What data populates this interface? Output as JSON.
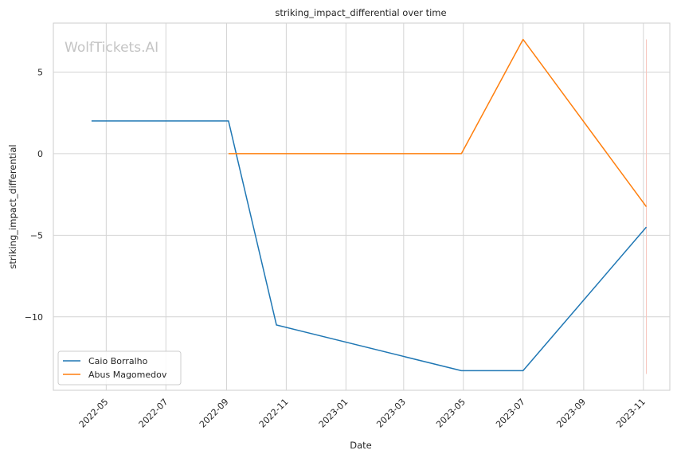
{
  "chart_data": {
    "type": "line",
    "title": "striking_impact_differential over time",
    "xlabel": "Date",
    "ylabel": "striking_impact_differential",
    "watermark": "WolfTickets.AI",
    "x_ticks": [
      "2022-05",
      "2022-07",
      "2022-09",
      "2022-11",
      "2023-01",
      "2023-03",
      "2023-05",
      "2023-07",
      "2023-09",
      "2023-11"
    ],
    "y_ticks": [
      5,
      0,
      -5,
      -10
    ],
    "y_tick_labels": [
      "5",
      "0",
      "−5",
      "−10"
    ],
    "xlim": [
      "2022-03-08",
      "2023-11-28"
    ],
    "ylim": [
      -14.5,
      8.0
    ],
    "grid": true,
    "legend_position": "lower-left",
    "colors": {
      "Caio Borralho": "#1f77b4",
      "Abus Magomedov": "#ff7f0e",
      "marker_line": "#f7c6bd"
    },
    "series": [
      {
        "name": "Caio Borralho",
        "color": "#1f77b4",
        "points": [
          {
            "x": "2022-04-16",
            "y": 2
          },
          {
            "x": "2022-09-03",
            "y": 2
          },
          {
            "x": "2022-10-22",
            "y": -10.5
          },
          {
            "x": "2023-04-29",
            "y": -13.3
          },
          {
            "x": "2023-07-01",
            "y": -13.3
          },
          {
            "x": "2023-11-04",
            "y": -4.5
          }
        ]
      },
      {
        "name": "Abus Magomedov",
        "color": "#ff7f0e",
        "points": [
          {
            "x": "2022-09-03",
            "y": 0
          },
          {
            "x": "2023-04-29",
            "y": 0
          },
          {
            "x": "2023-07-01",
            "y": 7
          },
          {
            "x": "2023-11-04",
            "y": -3.25
          }
        ]
      }
    ],
    "vertical_marker": {
      "x": "2023-11-04",
      "y_range": [
        -13.5,
        7
      ]
    }
  }
}
